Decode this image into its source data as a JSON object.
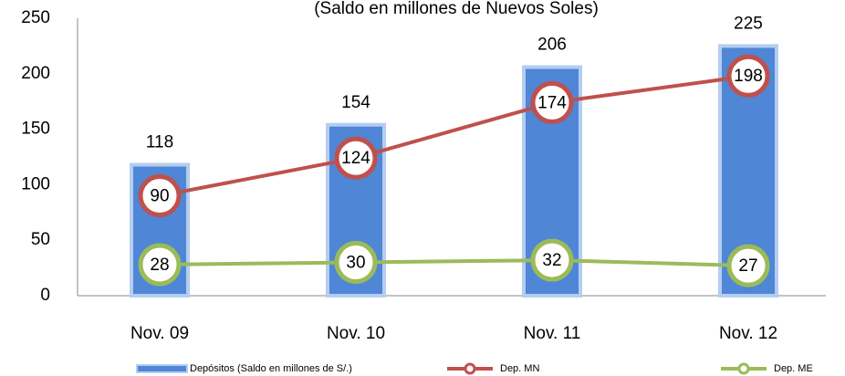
{
  "chart_data": {
    "type": "bar",
    "subtitle": "(Saldo en millones de Nuevos Soles)",
    "categories": [
      "Nov. 09",
      "Nov. 10",
      "Nov. 11",
      "Nov. 12"
    ],
    "series": [
      {
        "name": "Depósitos (Saldo en millones de S/.)",
        "type": "bar",
        "color": "#4f86d6",
        "values": [
          118,
          154,
          206,
          225
        ]
      },
      {
        "name": "Dep. MN",
        "type": "line",
        "color": "#c0504d",
        "values": [
          90,
          124,
          174,
          198
        ]
      },
      {
        "name": "Dep. ME",
        "type": "line",
        "color": "#9bbb59",
        "values": [
          28,
          30,
          32,
          27
        ]
      }
    ],
    "ylim": [
      0,
      250
    ],
    "yticks": [
      0,
      50,
      100,
      150,
      200,
      250
    ],
    "grid": false,
    "legend": "bottom"
  }
}
